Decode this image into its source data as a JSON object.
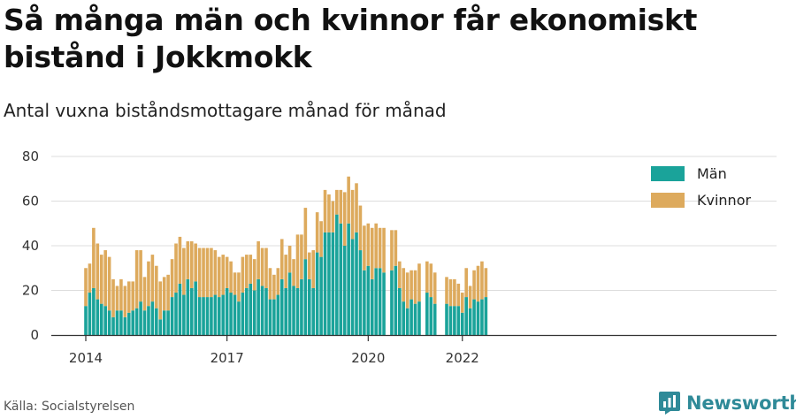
{
  "title": "Så många män och kvinnor får ekonomiskt bistånd i Jokkmokk",
  "subtitle": "Antal vuxna biståndsmottagare månad för månad",
  "source": "Källa: Socialstyrelsen",
  "brand": {
    "name": "Newsworthy",
    "icon": "bar-chart-logo-icon"
  },
  "colors": {
    "men": "#1aa39a",
    "women": "#ddaa5d",
    "grid": "#dddddd",
    "axis": "#333333"
  },
  "chart_data": {
    "type": "bar",
    "stacked": true,
    "x_start": "2014-01",
    "x_tick_labels": [
      "2014",
      "2017",
      "2020",
      "2022"
    ],
    "y_ticks": [
      0,
      20,
      40,
      60,
      80
    ],
    "ylim": [
      0,
      80
    ],
    "grid": true,
    "legend_position": "top-right",
    "series": [
      {
        "name": "Män",
        "color": "#1aa39a",
        "values": [
          13,
          19,
          21,
          16,
          14,
          13,
          11,
          8,
          11,
          11,
          8,
          10,
          11,
          12,
          15,
          11,
          13,
          15,
          12,
          7,
          11,
          11,
          17,
          19,
          23,
          18,
          25,
          21,
          24,
          17,
          17,
          17,
          17,
          18,
          17,
          18,
          21,
          19,
          18,
          15,
          19,
          21,
          23,
          20,
          25,
          22,
          21,
          16,
          16,
          18,
          25,
          21,
          28,
          22,
          21,
          25,
          34,
          25,
          21,
          37,
          35,
          46,
          46,
          46,
          54,
          50,
          40,
          50,
          43,
          46,
          38,
          29,
          31,
          25,
          30,
          30,
          28,
          null,
          29,
          31,
          21,
          15,
          12,
          16,
          14,
          15,
          null,
          19,
          17,
          14,
          null,
          null,
          14,
          13,
          13,
          13,
          10,
          17,
          12,
          16,
          15,
          16,
          17,
          null
        ]
      },
      {
        "name": "Kvinnor",
        "color": "#ddaa5d",
        "values": [
          17,
          13,
          27,
          25,
          22,
          25,
          24,
          17,
          11,
          14,
          14,
          14,
          13,
          26,
          23,
          15,
          20,
          21,
          19,
          17,
          15,
          16,
          17,
          22,
          21,
          21,
          17,
          21,
          17,
          22,
          22,
          22,
          22,
          20,
          18,
          18,
          14,
          14,
          10,
          13,
          16,
          15,
          13,
          14,
          17,
          17,
          18,
          14,
          11,
          12,
          18,
          15,
          12,
          12,
          24,
          20,
          23,
          12,
          17,
          18,
          16,
          19,
          17,
          14,
          11,
          15,
          24,
          21,
          22,
          22,
          20,
          20,
          19,
          23,
          20,
          18,
          20,
          null,
          18,
          16,
          12,
          15,
          16,
          13,
          15,
          17,
          null,
          14,
          15,
          14,
          null,
          null,
          12,
          12,
          12,
          10,
          9,
          13,
          10,
          13,
          16,
          17,
          13,
          null
        ]
      }
    ]
  }
}
